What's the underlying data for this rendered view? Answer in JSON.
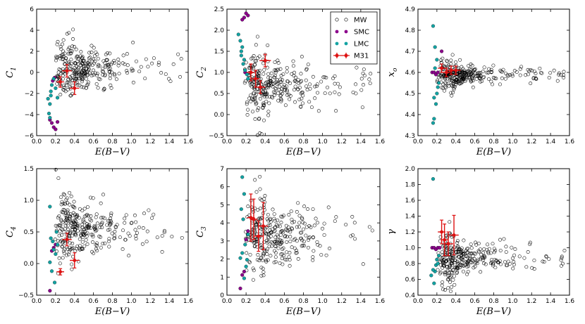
{
  "colors": {
    "MW_edge": "#000000",
    "SMC": "#8b008b",
    "LMC": "#13a3a3",
    "M31": "#dd1111"
  },
  "legend": {
    "panel": 1,
    "placement": "top-right",
    "entries": [
      {
        "label": "MW",
        "kind": "open-circle"
      },
      {
        "label": "SMC",
        "kind": "filled-circle"
      },
      {
        "label": "LMC",
        "kind": "filled-circle"
      },
      {
        "label": "M31",
        "kind": "errorbar-marker"
      }
    ]
  },
  "chart_data": [
    {
      "type": "scatter",
      "xlabel": "E(B−V)",
      "ylabel": "C",
      "ylabel_sub": "1",
      "xlim": [
        0.0,
        1.6
      ],
      "ylim": [
        -6,
        6
      ],
      "xticks": [
        "0.0",
        "0.2",
        "0.4",
        "0.6",
        "0.8",
        "1.0",
        "1.2",
        "1.4",
        "1.6"
      ],
      "yticks": [
        "−6",
        "−4",
        "−2",
        "0",
        "2",
        "4",
        "6"
      ],
      "mw_cloud": {
        "x_center": 0.5,
        "y_center": 0.4,
        "y_spread": 0.9,
        "count": 300
      },
      "series": [
        {
          "name": "SMC",
          "points": [
            [
              0.14,
              -4.5
            ],
            [
              0.16,
              -4.8
            ],
            [
              0.18,
              -5.2
            ],
            [
              0.2,
              -5.4
            ],
            [
              0.22,
              -4.7
            ],
            [
              0.17,
              -0.8
            ],
            [
              0.19,
              -0.5
            ]
          ]
        },
        {
          "name": "LMC",
          "points": [
            [
              0.12,
              -2.5
            ],
            [
              0.14,
              -3.0
            ],
            [
              0.13,
              -3.9
            ],
            [
              0.15,
              -2.2
            ],
            [
              0.16,
              -1.2
            ],
            [
              0.18,
              -0.6
            ],
            [
              0.2,
              -1.5
            ],
            [
              0.15,
              -1.8
            ],
            [
              0.22,
              -2.4
            ],
            [
              0.14,
              -4.3
            ]
          ]
        },
        {
          "name": "M31",
          "points": [
            {
              "x": 0.25,
              "y": -0.9,
              "xerr": 0.04,
              "yerr": 0.5
            },
            {
              "x": 0.32,
              "y": 0.15,
              "xerr": 0.05,
              "yerr": 0.6
            },
            {
              "x": 0.4,
              "y": -1.5,
              "xerr": 0.05,
              "yerr": 0.6
            }
          ]
        }
      ]
    },
    {
      "type": "scatter",
      "xlabel": "E(B−V)",
      "ylabel": "C",
      "ylabel_sub": "2",
      "xlim": [
        0.0,
        1.6
      ],
      "ylim": [
        -0.5,
        2.5
      ],
      "xticks": [
        "0.0",
        "0.2",
        "0.4",
        "0.6",
        "0.8",
        "1.0",
        "1.2",
        "1.4",
        "1.6"
      ],
      "yticks": [
        "−0.5",
        "0.0",
        "0.5",
        "1.0",
        "1.5",
        "2.0",
        "2.5"
      ],
      "mw_cloud": {
        "x_center": 0.5,
        "y_center": 0.72,
        "y_spread": 0.25,
        "count": 300
      },
      "series": [
        {
          "name": "SMC",
          "points": [
            [
              0.16,
              2.25
            ],
            [
              0.18,
              2.3
            ],
            [
              0.2,
              2.4
            ],
            [
              0.22,
              2.35
            ],
            [
              0.19,
              1.0
            ]
          ]
        },
        {
          "name": "LMC",
          "points": [
            [
              0.12,
              1.9
            ],
            [
              0.14,
              1.75
            ],
            [
              0.16,
              1.6
            ],
            [
              0.15,
              1.4
            ],
            [
              0.18,
              1.3
            ],
            [
              0.17,
              1.2
            ],
            [
              0.19,
              1.05
            ],
            [
              0.21,
              0.95
            ],
            [
              0.22,
              0.85
            ],
            [
              0.15,
              1.5
            ]
          ]
        },
        {
          "name": "M31",
          "points": [
            {
              "x": 0.25,
              "y": 1.0,
              "xerr": 0.04,
              "yerr": 0.2
            },
            {
              "x": 0.3,
              "y": 0.85,
              "xerr": 0.04,
              "yerr": 0.2
            },
            {
              "x": 0.35,
              "y": 0.65,
              "xerr": 0.05,
              "yerr": 0.15
            },
            {
              "x": 0.4,
              "y": 1.28,
              "xerr": 0.06,
              "yerr": 0.15
            }
          ]
        }
      ]
    },
    {
      "type": "scatter",
      "xlabel": "E(B−V)",
      "ylabel": "x",
      "ylabel_sub": "o",
      "xlim": [
        0.0,
        1.6
      ],
      "ylim": [
        4.3,
        4.9
      ],
      "xticks": [
        "0.0",
        "0.2",
        "0.4",
        "0.6",
        "0.8",
        "1.0",
        "1.2",
        "1.4",
        "1.6"
      ],
      "yticks": [
        "4.3",
        "4.4",
        "4.5",
        "4.6",
        "4.7",
        "4.8",
        "4.9"
      ],
      "mw_cloud": {
        "x_center": 0.5,
        "y_center": 4.59,
        "y_spread": 0.022,
        "count": 300
      },
      "series": [
        {
          "name": "SMC",
          "points": [
            [
              0.15,
              4.6
            ],
            [
              0.17,
              4.6
            ],
            [
              0.19,
              4.59
            ],
            [
              0.21,
              4.6
            ],
            [
              0.25,
              4.7
            ]
          ]
        },
        {
          "name": "LMC",
          "points": [
            [
              0.16,
              4.82
            ],
            [
              0.18,
              4.72
            ],
            [
              0.2,
              4.5
            ],
            [
              0.19,
              4.45
            ],
            [
              0.17,
              4.38
            ],
            [
              0.16,
              4.36
            ],
            [
              0.22,
              4.55
            ],
            [
              0.18,
              4.62
            ],
            [
              0.2,
              4.66
            ],
            [
              0.21,
              4.53
            ],
            [
              0.17,
              4.48
            ]
          ]
        },
        {
          "name": "M31",
          "points": [
            {
              "x": 0.25,
              "y": 4.62,
              "xerr": 0.04,
              "yerr": 0.02
            },
            {
              "x": 0.3,
              "y": 4.6,
              "xerr": 0.04,
              "yerr": 0.02
            },
            {
              "x": 0.35,
              "y": 4.61,
              "xerr": 0.05,
              "yerr": 0.02
            },
            {
              "x": 0.4,
              "y": 4.61,
              "xerr": 0.05,
              "yerr": 0.02
            }
          ]
        }
      ]
    },
    {
      "type": "scatter",
      "xlabel": "E(B−V)",
      "ylabel": "C",
      "ylabel_sub": "4",
      "xlim": [
        0.0,
        1.6
      ],
      "ylim": [
        -0.5,
        1.5
      ],
      "xticks": [
        "0.0",
        "0.2",
        "0.4",
        "0.6",
        "0.8",
        "1.0",
        "1.2",
        "1.4",
        "1.6"
      ],
      "yticks": [
        "−0.5",
        "0.0",
        "0.5",
        "1.0",
        "1.5"
      ],
      "mw_cloud": {
        "x_center": 0.5,
        "y_center": 0.55,
        "y_spread": 0.2,
        "count": 300
      },
      "series": [
        {
          "name": "SMC",
          "points": [
            [
              0.14,
              -0.43
            ],
            [
              0.16,
              0.2
            ],
            [
              0.18,
              0.25
            ],
            [
              0.2,
              0.3
            ]
          ]
        },
        {
          "name": "LMC",
          "points": [
            [
              0.14,
              0.9
            ],
            [
              0.15,
              0.4
            ],
            [
              0.17,
              0.35
            ],
            [
              0.18,
              0.22
            ],
            [
              0.2,
              0.15
            ],
            [
              0.16,
              -0.12
            ],
            [
              0.19,
              -0.3
            ],
            [
              0.22,
              0.3
            ],
            [
              0.21,
              0.5
            ],
            [
              0.14,
              0.02
            ]
          ]
        },
        {
          "name": "M31",
          "points": [
            {
              "x": 0.25,
              "y": -0.13,
              "xerr": 0.04,
              "yerr": 0.05
            },
            {
              "x": 0.32,
              "y": 0.38,
              "xerr": 0.05,
              "yerr": 0.1
            },
            {
              "x": 0.4,
              "y": 0.05,
              "xerr": 0.05,
              "yerr": 0.12
            }
          ]
        }
      ]
    },
    {
      "type": "scatter",
      "xlabel": "E(B−V)",
      "ylabel": "C",
      "ylabel_sub": "3",
      "xlim": [
        0.0,
        1.6
      ],
      "ylim": [
        -0.5,
        7
      ],
      "xticks": [
        "0.0",
        "0.2",
        "0.4",
        "0.6",
        "0.8",
        "1.0",
        "1.2",
        "1.4",
        "1.6"
      ],
      "yticks": [
        "0",
        "1",
        "2",
        "3",
        "4",
        "5",
        "6",
        "7"
      ],
      "mw_cloud": {
        "x_center": 0.5,
        "y_center": 3.0,
        "y_spread": 0.8,
        "count": 300
      },
      "series": [
        {
          "name": "SMC",
          "points": [
            [
              0.14,
              -0.1
            ],
            [
              0.16,
              0.7
            ],
            [
              0.18,
              0.9
            ],
            [
              0.2,
              2.8
            ],
            [
              0.22,
              3.3
            ]
          ]
        },
        {
          "name": "LMC",
          "points": [
            [
              0.16,
              6.5
            ],
            [
              0.18,
              5.5
            ],
            [
              0.15,
              4.6
            ],
            [
              0.17,
              4.0
            ],
            [
              0.16,
              2.0
            ],
            [
              0.14,
              1.7
            ],
            [
              0.2,
              1.2
            ],
            [
              0.18,
              0.5
            ],
            [
              0.22,
              3.1
            ],
            [
              0.19,
              2.5
            ],
            [
              0.21,
              1.6
            ]
          ]
        },
        {
          "name": "M31",
          "points": [
            {
              "x": 0.25,
              "y": 4.1,
              "xerr": 0.04,
              "yerr": 1.4
            },
            {
              "x": 0.28,
              "y": 4.0,
              "xerr": 0.04,
              "yerr": 1.2
            },
            {
              "x": 0.33,
              "y": 3.0,
              "xerr": 0.05,
              "yerr": 0.9
            },
            {
              "x": 0.38,
              "y": 3.6,
              "xerr": 0.05,
              "yerr": 1.4
            }
          ]
        }
      ]
    },
    {
      "type": "scatter",
      "xlabel": "E(B−V)",
      "ylabel": "γ",
      "ylabel_sub": "",
      "xlim": [
        0.0,
        1.6
      ],
      "ylim": [
        0.4,
        2.0
      ],
      "xticks": [
        "0.0",
        "0.2",
        "0.4",
        "0.6",
        "0.8",
        "1.0",
        "1.2",
        "1.4",
        "1.6"
      ],
      "yticks": [
        "0.4",
        "0.6",
        "0.8",
        "1.0",
        "1.2",
        "1.4",
        "1.6",
        "1.8",
        "2.0"
      ],
      "mw_cloud": {
        "x_center": 0.5,
        "y_center": 0.87,
        "y_spread": 0.1,
        "count": 300
      },
      "series": [
        {
          "name": "SMC",
          "points": [
            [
              0.15,
              1.0
            ],
            [
              0.17,
              1.0
            ],
            [
              0.19,
              0.98
            ],
            [
              0.21,
              1.0
            ],
            [
              0.23,
              1.0
            ]
          ]
        },
        {
          "name": "LMC",
          "points": [
            [
              0.16,
              1.87
            ],
            [
              0.14,
              0.65
            ],
            [
              0.17,
              0.55
            ],
            [
              0.18,
              0.7
            ],
            [
              0.19,
              0.78
            ],
            [
              0.2,
              0.85
            ],
            [
              0.22,
              0.9
            ],
            [
              0.16,
              0.72
            ],
            [
              0.21,
              0.8
            ]
          ]
        },
        {
          "name": "M31",
          "points": [
            {
              "x": 0.25,
              "y": 1.2,
              "xerr": 0.04,
              "yerr": 0.15
            },
            {
              "x": 0.28,
              "y": 1.1,
              "xerr": 0.04,
              "yerr": 0.2
            },
            {
              "x": 0.32,
              "y": 1.05,
              "xerr": 0.05,
              "yerr": 0.15
            },
            {
              "x": 0.38,
              "y": 1.16,
              "xerr": 0.05,
              "yerr": 0.25
            }
          ]
        }
      ]
    }
  ]
}
